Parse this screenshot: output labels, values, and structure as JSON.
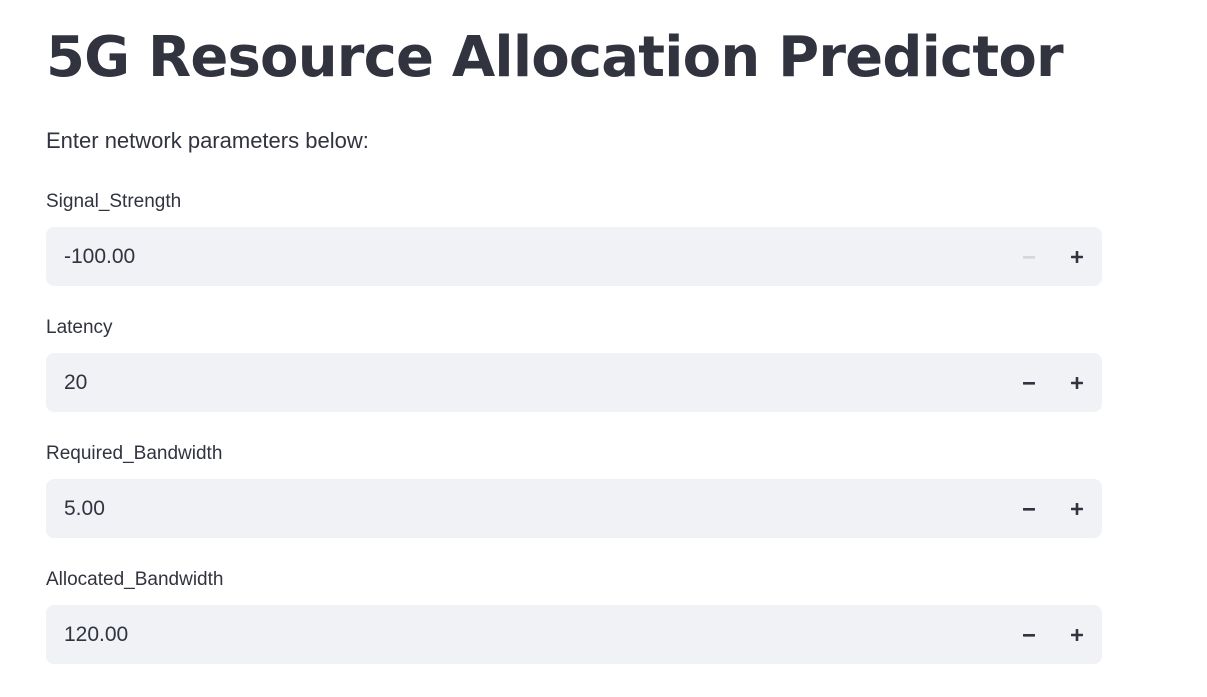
{
  "header": {
    "title": "5G Resource Allocation Predictor",
    "subtitle": "Enter network parameters below:"
  },
  "fields": [
    {
      "label": "Signal_Strength",
      "value": "-100.00",
      "minus_disabled": true
    },
    {
      "label": "Latency",
      "value": "20",
      "minus_disabled": false
    },
    {
      "label": "Required_Bandwidth",
      "value": "5.00",
      "minus_disabled": false
    },
    {
      "label": "Allocated_Bandwidth",
      "value": "120.00",
      "minus_disabled": false
    }
  ],
  "icons": {
    "decrement": "minus-icon",
    "increment": "plus-icon"
  },
  "colors": {
    "text": "#31333f",
    "input_bg": "#f0f2f6",
    "disabled_icon": "#d4d6dc"
  }
}
